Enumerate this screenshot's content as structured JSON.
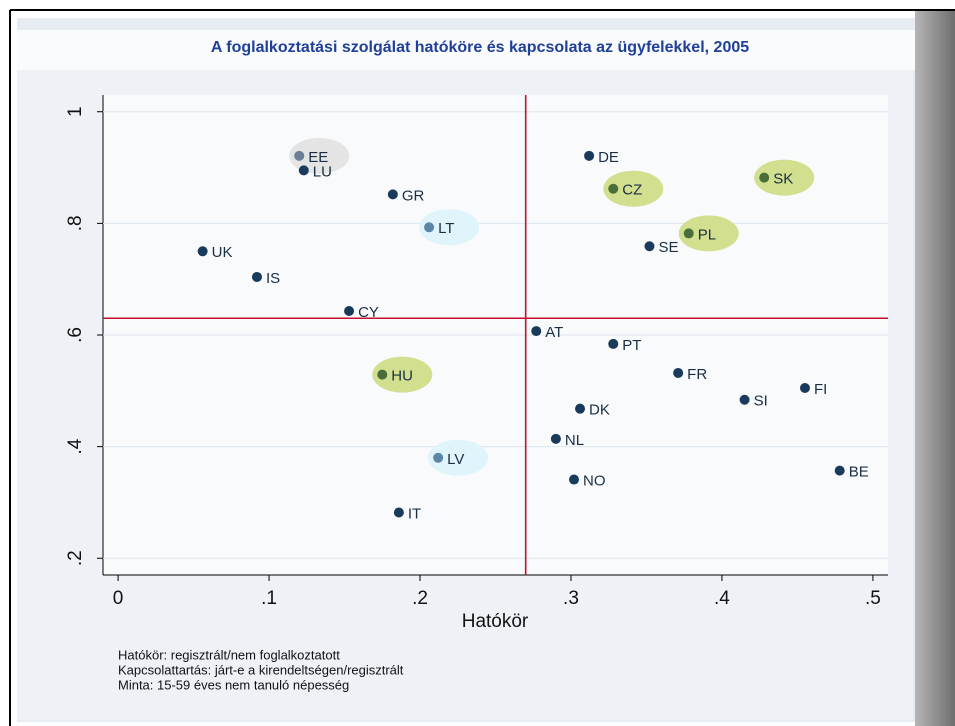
{
  "chart_data": {
    "type": "scatter",
    "title": "A foglalkoztatási szolgálat hatóköre és kapcsolata az ügyfelekkel, 2005",
    "x_label": "Hatókör",
    "notes": [
      "Hatókör: regisztrált/nem foglalkoztatott",
      "Kapcsolattartás: járt-e a kirendeltségen/regisztrált",
      "Minta: 15-59 éves nem tanuló népesség"
    ],
    "xlim": [
      -0.01,
      0.51
    ],
    "ylim": [
      0.17,
      1.03
    ],
    "xticks": [
      0,
      {
        "value": 0.1,
        "label": ".1"
      },
      {
        "value": 0.2,
        "label": ".2"
      },
      {
        "value": 0.3,
        "label": ".3"
      },
      {
        "value": 0.4,
        "label": ".4"
      },
      {
        "value": 0.5,
        "label": ".5"
      }
    ],
    "yticks": [
      {
        "value": 0.2,
        "label": ".2"
      },
      {
        "value": 0.4,
        "label": ".4"
      },
      {
        "value": 0.6,
        "label": ".6"
      },
      {
        "value": 0.8,
        "label": ".8"
      },
      1
    ],
    "grid": true,
    "reference_x": 0.27,
    "reference_y": 0.63,
    "reference_color": "#c8102e",
    "labels": [
      "EE",
      "LU",
      "GR",
      "LT",
      "UK",
      "IS",
      "CY",
      "DE",
      "CZ",
      "SK",
      "PL",
      "SE",
      "AT",
      "PT",
      "HU",
      "FR",
      "SI",
      "FI",
      "DK",
      "NL",
      "LV",
      "NO",
      "BE",
      "IT"
    ],
    "x": [
      0.12,
      0.123,
      0.182,
      0.206,
      0.056,
      0.092,
      0.153,
      0.312,
      0.328,
      0.428,
      0.378,
      0.352,
      0.277,
      0.328,
      0.175,
      0.371,
      0.415,
      0.455,
      0.306,
      0.29,
      0.212,
      0.302,
      0.478,
      0.186
    ],
    "y": [
      0.921,
      0.895,
      0.852,
      0.793,
      0.75,
      0.704,
      0.643,
      0.921,
      0.862,
      0.882,
      0.782,
      0.759,
      0.607,
      0.584,
      0.529,
      0.532,
      0.484,
      0.505,
      0.468,
      0.414,
      0.38,
      0.341,
      0.357,
      0.282
    ],
    "point_colors": [
      "#6a7f95",
      "#1a3a5c",
      "#1a3a5c",
      "#5a86a8",
      "#1a3a5c",
      "#1a3a5c",
      "#1a3a5c",
      "#1a3a5c",
      "#4a6e3a",
      "#4a6e3a",
      "#4a6e3a",
      "#1a3a5c",
      "#1a3a5c",
      "#1a3a5c",
      "#4a6e3a",
      "#1a3a5c",
      "#1a3a5c",
      "#1a3a5c",
      "#1a3a5c",
      "#1a3a5c",
      "#5a86a8",
      "#1a3a5c",
      "#1a3a5c",
      "#1a3a5c"
    ],
    "highlight_colors": [
      "#e4e4e4",
      null,
      null,
      "#dff4fb",
      null,
      null,
      null,
      null,
      "#d2df8e",
      "#d2df8e",
      "#d2df8e",
      null,
      null,
      null,
      "#d2df8e",
      null,
      null,
      null,
      null,
      null,
      "#dff4fb",
      null,
      null,
      null
    ]
  }
}
